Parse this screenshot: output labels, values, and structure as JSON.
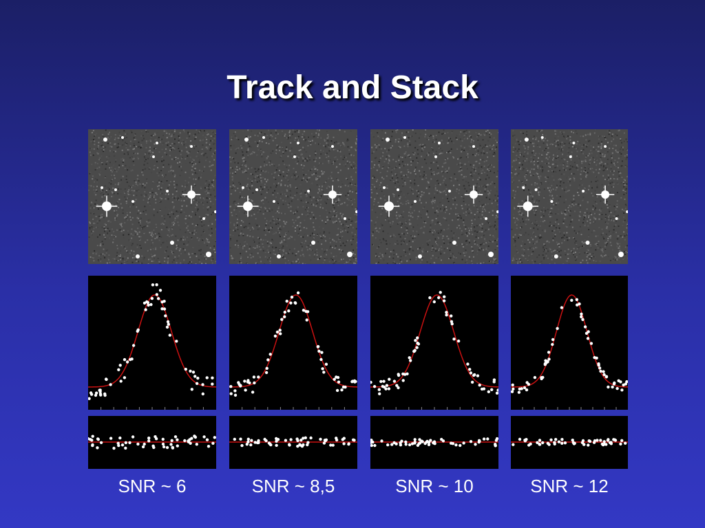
{
  "slide": {
    "title": "Track and Stack",
    "colors": {
      "curve": "#cc1111",
      "points": "#ffffff",
      "panel_bg": "#000000"
    }
  },
  "panels": [
    {
      "label": "SNR ~ 6",
      "image": "star-field-image",
      "noise": 1.0
    },
    {
      "label": "SNR ~ 8,5",
      "image": "star-field-image",
      "noise": 0.72
    },
    {
      "label": "SNR ~ 10",
      "image": "star-field-image",
      "noise": 0.6
    },
    {
      "label": "SNR ~ 12",
      "image": "star-field-image",
      "noise": 0.5
    }
  ]
}
